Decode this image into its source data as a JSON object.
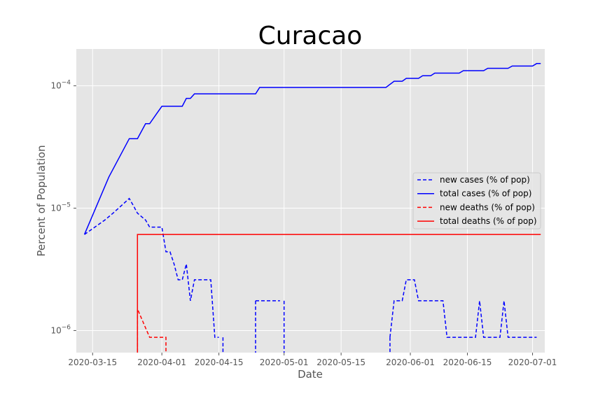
{
  "chart_data": {
    "type": "line",
    "title": "Curacao",
    "xlabel": "Date",
    "ylabel": "Percent of Population",
    "y_scale": "log",
    "ylim": [
      6.6e-07,
      0.0002
    ],
    "xlim": [
      "2020-03-11",
      "2020-07-04"
    ],
    "grid": true,
    "legend_position": "center-right",
    "x_ticks": [
      "2020-03-15",
      "2020-04-01",
      "2020-04-15",
      "2020-05-01",
      "2020-05-15",
      "2020-06-01",
      "2020-06-15",
      "2020-07-01"
    ],
    "y_ticks": [
      {
        "value": 1e-06,
        "base": "10",
        "exp": "−6"
      },
      {
        "value": 1e-05,
        "base": "10",
        "exp": "−5"
      },
      {
        "value": 0.0001,
        "base": "10",
        "exp": "−4"
      }
    ],
    "colors": {
      "background": "#e5e5e5",
      "grid": "#ffffff",
      "cases": "#0000ff",
      "deaths": "#ff0000"
    },
    "series": [
      {
        "name": "new cases (% of pop)",
        "color": "#0000ff",
        "dash": "dashed",
        "points": [
          [
            "2020-03-13",
            6.1e-06
          ],
          [
            "2020-03-18",
            8e-06
          ],
          [
            "2020-03-20",
            9.1e-06
          ],
          [
            "2020-03-24",
            1.2e-05
          ],
          [
            "2020-03-25",
            1.05e-05
          ],
          [
            "2020-03-26",
            9.1e-06
          ],
          [
            "2020-03-28",
            8e-06
          ],
          [
            "2020-03-29",
            7e-06
          ],
          [
            "2020-03-30",
            7e-06
          ],
          [
            "2020-04-01",
            7e-06
          ],
          [
            "2020-04-02",
            4.4e-06
          ],
          [
            "2020-04-03",
            4.4e-06
          ],
          [
            "2020-04-04",
            3.5e-06
          ],
          [
            "2020-04-05",
            2.6e-06
          ],
          [
            "2020-04-06",
            2.6e-06
          ],
          [
            "2020-04-07",
            3.5e-06
          ],
          [
            "2020-04-08",
            1.75e-06
          ],
          [
            "2020-04-09",
            2.6e-06
          ],
          [
            "2020-04-13",
            2.6e-06
          ],
          [
            "2020-04-14",
            8.8e-07
          ],
          [
            "2020-04-15",
            8.8e-07
          ],
          [
            "2020-04-16",
            null
          ],
          [
            "2020-04-24",
            1.75e-06
          ],
          [
            "2020-04-30",
            1.75e-06
          ],
          [
            "2020-05-01",
            null
          ],
          [
            "2020-05-27",
            8.8e-07
          ],
          [
            "2020-05-28",
            1.75e-06
          ],
          [
            "2020-05-30",
            1.75e-06
          ],
          [
            "2020-05-31",
            2.6e-06
          ],
          [
            "2020-06-02",
            2.6e-06
          ],
          [
            "2020-06-03",
            1.75e-06
          ],
          [
            "2020-06-09",
            1.75e-06
          ],
          [
            "2020-06-10",
            8.8e-07
          ],
          [
            "2020-06-17",
            8.8e-07
          ],
          [
            "2020-06-18",
            1.75e-06
          ],
          [
            "2020-06-19",
            8.8e-07
          ],
          [
            "2020-06-23",
            8.8e-07
          ],
          [
            "2020-06-24",
            1.75e-06
          ],
          [
            "2020-06-25",
            8.8e-07
          ],
          [
            "2020-07-02",
            8.8e-07
          ]
        ]
      },
      {
        "name": "total cases (% of pop)",
        "color": "#0000ff",
        "dash": "solid",
        "points": [
          [
            "2020-03-13",
            6.1e-06
          ],
          [
            "2020-03-19",
            1.8e-05
          ],
          [
            "2020-03-24",
            3.7e-05
          ],
          [
            "2020-03-26",
            3.7e-05
          ],
          [
            "2020-03-28",
            4.9e-05
          ],
          [
            "2020-03-29",
            4.9e-05
          ],
          [
            "2020-03-31",
            6.1e-05
          ],
          [
            "2020-04-01",
            6.8e-05
          ],
          [
            "2020-04-06",
            6.8e-05
          ],
          [
            "2020-04-07",
            7.9e-05
          ],
          [
            "2020-04-08",
            7.9e-05
          ],
          [
            "2020-04-09",
            8.6e-05
          ],
          [
            "2020-04-24",
            8.6e-05
          ],
          [
            "2020-04-25",
            9.7e-05
          ],
          [
            "2020-05-26",
            9.7e-05
          ],
          [
            "2020-05-28",
            0.000109
          ],
          [
            "2020-05-30",
            0.000109
          ],
          [
            "2020-05-31",
            0.000115
          ],
          [
            "2020-06-03",
            0.000115
          ],
          [
            "2020-06-04",
            0.000121
          ],
          [
            "2020-06-06",
            0.000121
          ],
          [
            "2020-06-07",
            0.000127
          ],
          [
            "2020-06-13",
            0.000127
          ],
          [
            "2020-06-14",
            0.000133
          ],
          [
            "2020-06-19",
            0.000133
          ],
          [
            "2020-06-20",
            0.000139
          ],
          [
            "2020-06-25",
            0.000139
          ],
          [
            "2020-06-26",
            0.000145
          ],
          [
            "2020-07-01",
            0.000145
          ],
          [
            "2020-07-02",
            0.000152
          ],
          [
            "2020-07-03",
            0.000152
          ]
        ]
      },
      {
        "name": "new deaths (% of pop)",
        "color": "#ff0000",
        "dash": "dashed",
        "points": [
          [
            "2020-03-26",
            6e-07
          ],
          [
            "2020-03-26",
            1.5e-06
          ],
          [
            "2020-03-28",
            1.05e-06
          ],
          [
            "2020-03-29",
            8.8e-07
          ],
          [
            "2020-04-02",
            8.8e-07
          ],
          [
            "2020-04-02",
            6e-07
          ]
        ]
      },
      {
        "name": "total deaths (% of pop)",
        "color": "#ff0000",
        "dash": "solid",
        "points": [
          [
            "2020-03-26",
            6e-07
          ],
          [
            "2020-03-26",
            6.1e-06
          ],
          [
            "2020-07-03",
            6.1e-06
          ]
        ]
      }
    ]
  }
}
